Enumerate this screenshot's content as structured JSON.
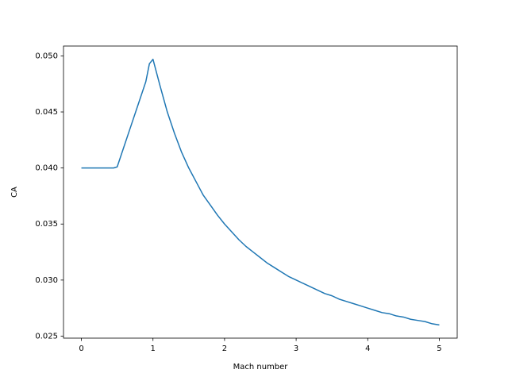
{
  "chart_data": {
    "type": "line",
    "xlabel": "Mach number",
    "ylabel": "CA",
    "x": [
      0,
      0.1,
      0.2,
      0.3,
      0.4,
      0.45,
      0.5,
      0.6,
      0.7,
      0.8,
      0.9,
      0.95,
      1.0,
      1.1,
      1.2,
      1.3,
      1.4,
      1.5,
      1.6,
      1.7,
      1.8,
      1.9,
      2.0,
      2.1,
      2.2,
      2.3,
      2.4,
      2.5,
      2.6,
      2.7,
      2.8,
      2.9,
      3.0,
      3.1,
      3.2,
      3.3,
      3.4,
      3.5,
      3.6,
      3.7,
      3.8,
      3.9,
      4.0,
      4.1,
      4.2,
      4.3,
      4.4,
      4.5,
      4.6,
      4.7,
      4.8,
      4.9,
      5.0
    ],
    "series": [
      {
        "color": "#1f77b4",
        "values": [
          0.04,
          0.04,
          0.04,
          0.04,
          0.04,
          0.04,
          0.0401,
          0.042,
          0.0439,
          0.0458,
          0.0477,
          0.0493,
          0.0497,
          0.0473,
          0.045,
          0.0431,
          0.0414,
          0.04,
          0.0388,
          0.0376,
          0.0367,
          0.0358,
          0.035,
          0.0343,
          0.0336,
          0.033,
          0.0325,
          0.032,
          0.0315,
          0.0311,
          0.0307,
          0.0303,
          0.03,
          0.0297,
          0.0294,
          0.0291,
          0.0288,
          0.0286,
          0.0283,
          0.0281,
          0.0279,
          0.0277,
          0.0275,
          0.0273,
          0.0271,
          0.027,
          0.0268,
          0.0267,
          0.0265,
          0.0264,
          0.0263,
          0.0261,
          0.026
        ]
      }
    ],
    "xlim": [
      -0.25,
      5.25
    ],
    "xticks": [
      0,
      1,
      2,
      3,
      4,
      5
    ],
    "ylim": [
      0.02482,
      0.05088
    ],
    "yticks": [
      0.025,
      {
        "value": 0.03,
        "label": "0.030"
      },
      0.035,
      {
        "value": 0.04,
        "label": "0.040"
      },
      0.045,
      {
        "value": 0.05,
        "label": "0.050"
      }
    ],
    "grid": false
  }
}
